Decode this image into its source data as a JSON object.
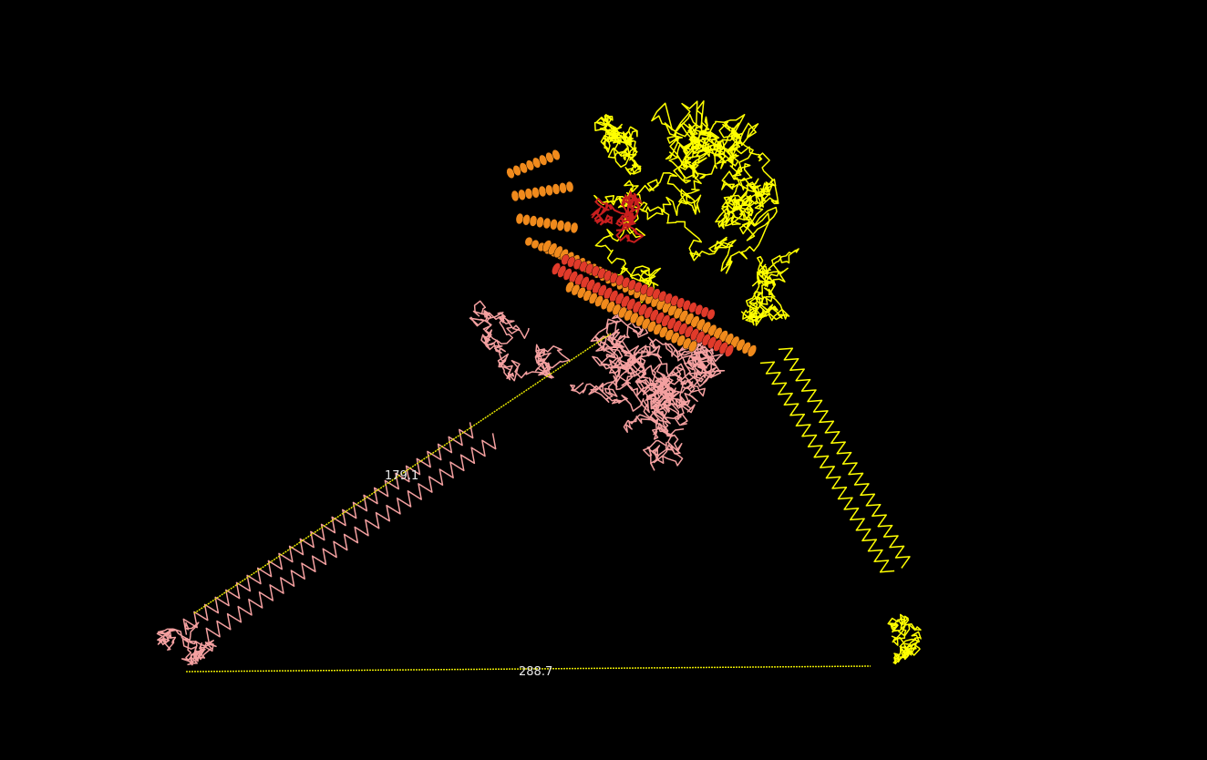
{
  "scene": {
    "background": "#000000",
    "colors": {
      "chain_a": "#ffff00",
      "chain_b": "#f4a0a0",
      "cartoon_orange": "#f08a1c",
      "cartoon_red": "#e03a2a",
      "cartoon_dark_red": "#c81e1e",
      "distance_line": "#e6e600",
      "label": "#e8e8e8"
    },
    "measurements": [
      {
        "label": "179.1"
      },
      {
        "label": "288.7"
      }
    ]
  }
}
